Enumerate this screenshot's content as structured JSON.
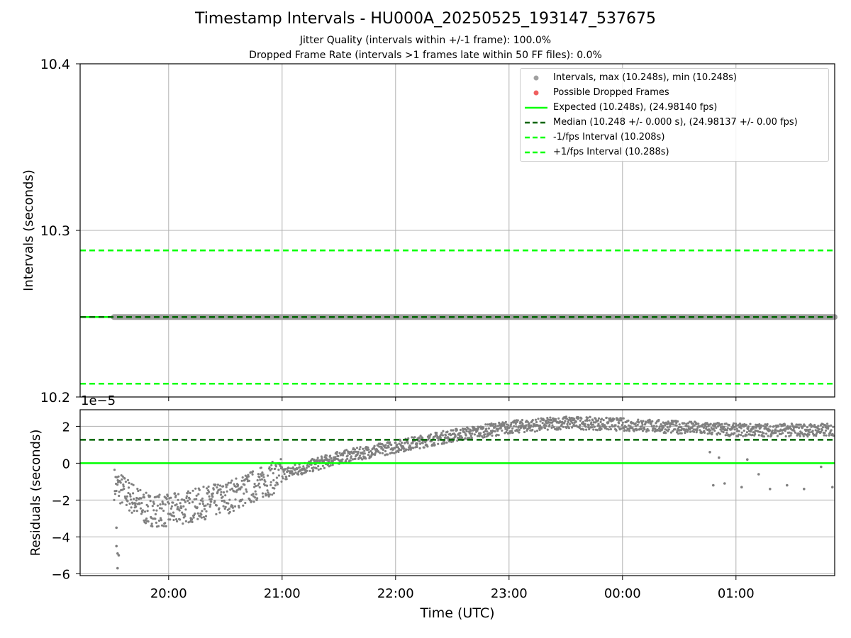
{
  "title": "Timestamp Intervals - HU000A_20250525_193147_537675",
  "subtitle_1": "Jitter Quality (intervals within +/-1 frame): 100.0%",
  "subtitle_2": "Dropped Frame Rate (intervals >1 frames late within 50 FF files): 0.0%",
  "colors": {
    "points": "#808080",
    "dropped": "#ff3333",
    "expected": "#00ff00",
    "median": "#006400",
    "fps_interval": "#00ff00",
    "grid": "#b0b0b0"
  },
  "legend": {
    "intervals": "Intervals, max (10.248s), min (10.248s)",
    "dropped": "Possible Dropped Frames",
    "expected": "Expected (10.248s), (24.98140 fps)",
    "median": "Median (10.248 +/- 0.000 s), (24.98137 +/- 0.00 fps)",
    "minus_interval": "-1/fps Interval (10.208s)",
    "plus_interval": "+1/fps Interval (10.288s)"
  },
  "chart_data": [
    {
      "type": "scatter",
      "panel": "top",
      "ylabel": "Intervals (seconds)",
      "ylim": [
        10.2,
        10.4
      ],
      "yticks": [
        "10.2",
        "10.3",
        "10.4"
      ],
      "x_range_hours": [
        19.22,
        25.87
      ],
      "grid": true,
      "legend_position": "top-right",
      "series": [
        {
          "name": "Intervals, max (10.248s), min (10.248s)",
          "x_start": "19:31",
          "x_end": "01:52",
          "y": 10.248
        },
        {
          "name": "Expected (10.248s), (24.98140 fps)",
          "y": 10.248
        },
        {
          "name": "Median (10.248 +/- 0.000 s), (24.98137 +/- 0.00 fps)",
          "y": 10.248
        },
        {
          "name": "-1/fps Interval (10.208s)",
          "y": 10.208
        },
        {
          "name": "+1/fps Interval (10.288s)",
          "y": 10.288
        }
      ]
    },
    {
      "type": "scatter",
      "panel": "bottom",
      "offset_label": "1e−5",
      "xlabel": "Time (UTC)",
      "ylabel": "Residuals (seconds)",
      "ylim": [
        -6.1,
        2.9
      ],
      "yticks": [
        "−6",
        "−4",
        "−2",
        "0",
        "2"
      ],
      "xticks": [
        "20:00",
        "21:00",
        "22:00",
        "23:00",
        "00:00",
        "01:00"
      ],
      "grid": true,
      "reference_lines": {
        "expected": 0,
        "median": 1.27
      },
      "residual_trend": [
        {
          "t": 19.5,
          "y": -1.0
        },
        {
          "t": 19.8,
          "y": -2.5
        },
        {
          "t": 20.0,
          "y": -2.6
        },
        {
          "t": 20.5,
          "y": -1.9
        },
        {
          "t": 21.0,
          "y": -0.6
        },
        {
          "t": 21.5,
          "y": 0.3
        },
        {
          "t": 22.0,
          "y": 0.9
        },
        {
          "t": 22.5,
          "y": 1.5
        },
        {
          "t": 23.0,
          "y": 1.95
        },
        {
          "t": 23.5,
          "y": 2.2
        },
        {
          "t": 24.0,
          "y": 2.1
        },
        {
          "t": 24.5,
          "y": 1.95
        },
        {
          "t": 25.0,
          "y": 1.8
        },
        {
          "t": 25.87,
          "y": 1.8
        }
      ],
      "outliers": [
        {
          "t": 19.54,
          "y": -3.5
        },
        {
          "t": 19.54,
          "y": -4.5
        },
        {
          "t": 19.55,
          "y": -4.9
        },
        {
          "t": 19.55,
          "y": -5.7
        },
        {
          "t": 19.56,
          "y": -5.0
        },
        {
          "t": 24.77,
          "y": 0.6
        },
        {
          "t": 24.8,
          "y": -1.2
        },
        {
          "t": 24.85,
          "y": 0.3
        },
        {
          "t": 24.9,
          "y": -1.1
        },
        {
          "t": 25.05,
          "y": -1.3
        },
        {
          "t": 25.1,
          "y": 0.2
        },
        {
          "t": 25.2,
          "y": -0.6
        },
        {
          "t": 25.3,
          "y": -1.4
        },
        {
          "t": 25.45,
          "y": -1.2
        },
        {
          "t": 25.6,
          "y": -1.4
        },
        {
          "t": 25.75,
          "y": -0.2
        },
        {
          "t": 25.85,
          "y": -1.3
        }
      ]
    }
  ]
}
